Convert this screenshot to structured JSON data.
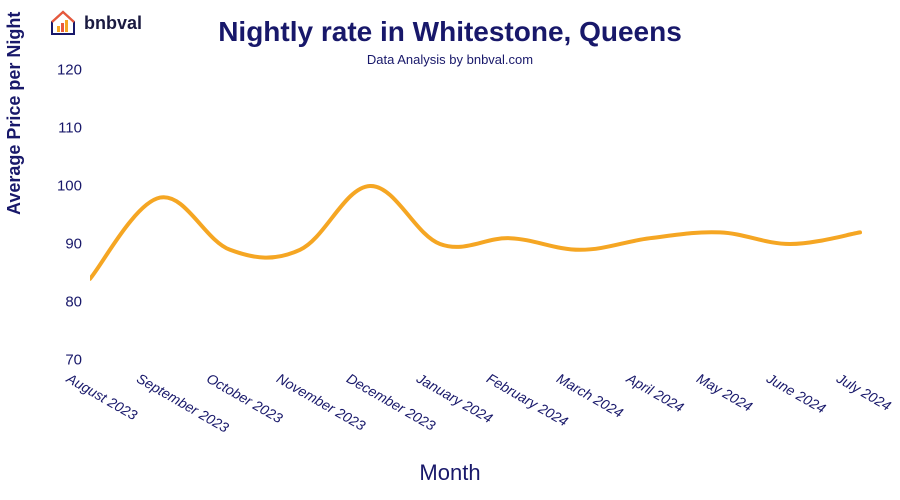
{
  "brand": {
    "name": "bnbval"
  },
  "chart": {
    "type": "line",
    "title": "Nightly rate in Whitestone, Queens",
    "subtitle": "Data Analysis by bnbval.com",
    "xlabel": "Month",
    "ylabel": "Average Price per Night",
    "title_fontsize": 28,
    "subtitle_fontsize": 13,
    "label_fontsize": 18,
    "tick_fontsize": 15,
    "text_color": "#18186a",
    "line_color": "#f5a623",
    "line_width": 4,
    "background_color": "#ffffff",
    "ylim": [
      70,
      120
    ],
    "yticks": [
      70,
      80,
      90,
      100,
      110,
      120
    ],
    "categories": [
      "August 2023",
      "September 2023",
      "October 2023",
      "November 2023",
      "December 2023",
      "January 2024",
      "February 2024",
      "March 2024",
      "April 2024",
      "May 2024",
      "June 2024",
      "July 2024"
    ],
    "values": [
      84,
      98,
      89,
      89,
      100,
      90,
      91,
      89,
      91,
      92,
      90,
      92
    ]
  },
  "logo_colors": {
    "roof": "#18186a",
    "wall": "#18186a",
    "bars": [
      "#f5a623",
      "#e8593c",
      "#f5a623"
    ],
    "glass_handle": "#e8593c"
  }
}
